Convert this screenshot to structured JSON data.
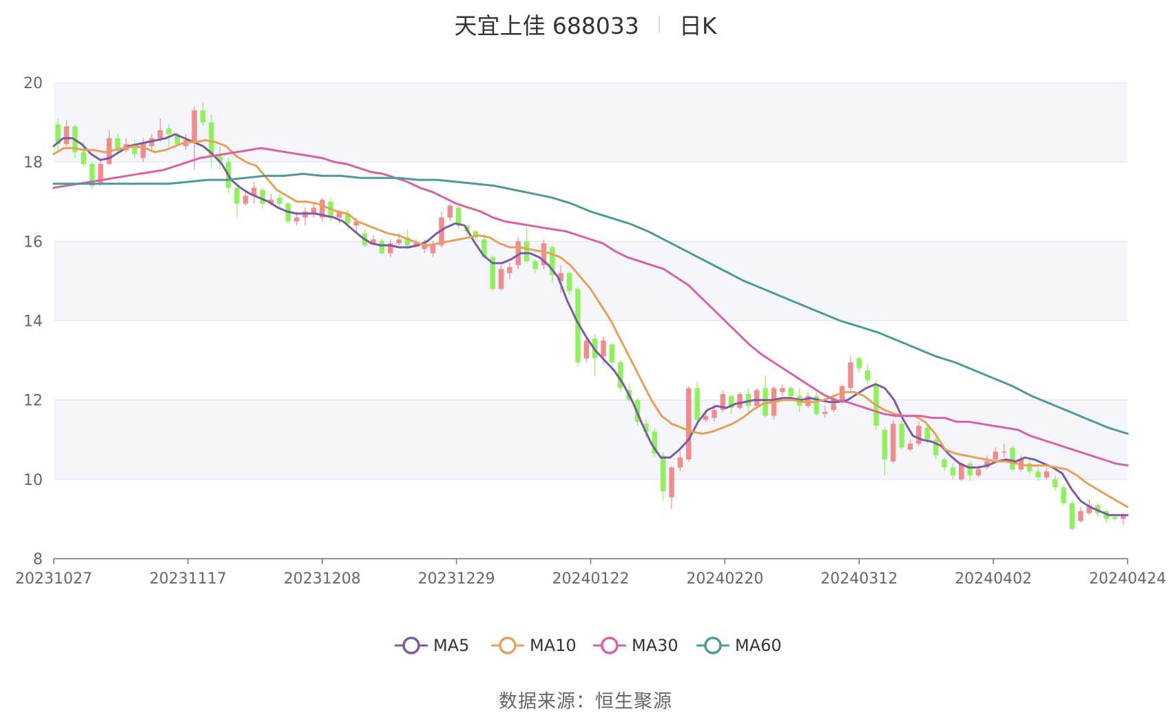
{
  "chart_data": {
    "type": "candlestick",
    "title": "天宜上佳 688033",
    "period_label": "日K",
    "y_ticks": [
      "20",
      "18",
      "16",
      "14",
      "12",
      "10",
      "8"
    ],
    "ylim": [
      8,
      20
    ],
    "x_ticks": [
      "20231027",
      "20231117",
      "20231208",
      "20231229",
      "20240122",
      "20240220",
      "20240312",
      "20240402",
      "20240424"
    ],
    "legend_position": "bottom-center",
    "grid": true,
    "colors": {
      "up": "#f28b8b",
      "down": "#8ef25a",
      "ma5": "#7b5aa6",
      "ma10": "#e8a055",
      "ma30": "#d860a8",
      "ma60": "#4a9a9a"
    },
    "candles": [
      [
        18.95,
        18.45,
        19.1,
        18.3
      ],
      [
        18.45,
        18.9,
        19.05,
        18.4
      ],
      [
        18.9,
        18.25,
        18.95,
        18.1
      ],
      [
        18.25,
        17.95,
        18.5,
        17.9
      ],
      [
        17.95,
        17.4,
        18.0,
        17.3
      ],
      [
        17.45,
        17.95,
        18.05,
        17.4
      ],
      [
        17.95,
        18.6,
        18.8,
        17.9
      ],
      [
        18.6,
        18.3,
        18.7,
        18.2
      ],
      [
        18.3,
        18.45,
        18.6,
        18.25
      ],
      [
        18.45,
        18.2,
        18.55,
        18.1
      ],
      [
        18.1,
        18.5,
        18.6,
        18.0
      ],
      [
        18.4,
        18.6,
        18.7,
        18.3
      ],
      [
        18.6,
        18.8,
        19.1,
        18.5
      ],
      [
        18.85,
        18.7,
        18.95,
        18.4
      ],
      [
        18.7,
        18.45,
        18.75,
        18.4
      ],
      [
        18.4,
        18.55,
        18.7,
        18.3
      ],
      [
        18.5,
        19.3,
        19.4,
        17.8
      ],
      [
        19.3,
        19.0,
        19.5,
        18.9
      ],
      [
        19.0,
        18.15,
        19.2,
        17.85
      ],
      [
        18.15,
        18.0,
        18.4,
        17.8
      ],
      [
        18.0,
        17.35,
        18.1,
        17.2
      ],
      [
        17.35,
        16.95,
        17.4,
        16.6
      ],
      [
        16.95,
        17.15,
        17.3,
        16.9
      ],
      [
        17.15,
        17.35,
        17.5,
        16.95
      ],
      [
        17.3,
        16.95,
        17.35,
        16.85
      ],
      [
        16.95,
        17.05,
        17.2,
        16.9
      ],
      [
        17.1,
        16.95,
        17.2,
        16.85
      ],
      [
        16.95,
        16.5,
        17.0,
        16.45
      ],
      [
        16.5,
        16.6,
        16.75,
        16.4
      ],
      [
        16.6,
        16.75,
        16.85,
        16.4
      ],
      [
        16.7,
        16.85,
        16.95,
        16.6
      ],
      [
        16.6,
        17.05,
        17.1,
        16.5
      ],
      [
        17.0,
        16.6,
        17.1,
        16.5
      ],
      [
        16.6,
        16.75,
        16.8,
        16.45
      ],
      [
        16.7,
        16.45,
        16.8,
        16.3
      ],
      [
        16.4,
        16.5,
        16.6,
        16.2
      ],
      [
        16.2,
        15.9,
        16.3,
        15.85
      ],
      [
        15.95,
        16.05,
        16.15,
        15.9
      ],
      [
        16.0,
        15.7,
        16.1,
        15.65
      ],
      [
        15.7,
        15.95,
        16.05,
        15.6
      ],
      [
        15.95,
        16.05,
        16.2,
        15.9
      ],
      [
        16.1,
        15.9,
        16.3,
        15.8
      ],
      [
        15.9,
        15.95,
        16.05,
        15.85
      ],
      [
        15.8,
        15.95,
        16.05,
        15.7
      ],
      [
        15.7,
        15.9,
        16.0,
        15.6
      ],
      [
        15.9,
        16.6,
        16.75,
        15.85
      ],
      [
        16.6,
        16.9,
        16.95,
        16.5
      ],
      [
        16.85,
        16.4,
        16.95,
        16.3
      ],
      [
        16.4,
        16.25,
        16.4,
        16.15
      ],
      [
        16.25,
        16.1,
        16.3,
        16.05
      ],
      [
        16.05,
        15.6,
        16.2,
        15.55
      ],
      [
        15.6,
        14.8,
        15.65,
        14.75
      ],
      [
        14.8,
        15.3,
        15.4,
        14.75
      ],
      [
        15.2,
        15.35,
        15.45,
        15.05
      ],
      [
        15.4,
        16.0,
        16.1,
        15.3
      ],
      [
        16.0,
        15.5,
        16.35,
        15.45
      ],
      [
        15.5,
        15.3,
        15.55,
        15.2
      ],
      [
        15.4,
        15.95,
        16.05,
        15.3
      ],
      [
        15.85,
        15.15,
        15.9,
        14.95
      ],
      [
        15.0,
        15.2,
        15.4,
        14.7
      ],
      [
        15.2,
        14.75,
        15.25,
        14.65
      ],
      [
        14.8,
        12.95,
        14.85,
        12.85
      ],
      [
        13.05,
        13.5,
        13.6,
        12.95
      ],
      [
        13.55,
        13.05,
        13.65,
        12.6
      ],
      [
        13.1,
        13.5,
        13.6,
        12.9
      ],
      [
        13.4,
        12.95,
        13.45,
        12.75
      ],
      [
        12.95,
        12.3,
        13.0,
        12.2
      ],
      [
        12.25,
        12.0,
        12.4,
        11.95
      ],
      [
        12.0,
        11.45,
        12.05,
        11.35
      ],
      [
        11.4,
        11.2,
        11.5,
        11.05
      ],
      [
        11.2,
        10.65,
        11.3,
        10.55
      ],
      [
        10.6,
        9.7,
        10.7,
        9.45
      ],
      [
        9.55,
        10.3,
        10.35,
        9.25
      ],
      [
        10.3,
        10.55,
        10.7,
        10.2
      ],
      [
        10.5,
        12.3,
        12.35,
        10.45
      ],
      [
        12.3,
        11.5,
        12.45,
        11.4
      ],
      [
        11.5,
        11.6,
        11.75,
        11.45
      ],
      [
        11.55,
        11.75,
        11.9,
        11.45
      ],
      [
        11.75,
        12.15,
        12.25,
        11.7
      ],
      [
        12.1,
        11.8,
        12.15,
        11.65
      ],
      [
        11.8,
        12.15,
        12.2,
        11.75
      ],
      [
        12.15,
        11.85,
        12.3,
        11.7
      ],
      [
        11.85,
        12.25,
        12.3,
        11.8
      ],
      [
        12.3,
        11.6,
        12.6,
        11.55
      ],
      [
        11.6,
        12.3,
        12.35,
        11.5
      ],
      [
        12.2,
        12.3,
        12.4,
        12.1
      ],
      [
        12.3,
        12.1,
        12.35,
        12.05
      ],
      [
        12.1,
        11.85,
        12.3,
        11.7
      ],
      [
        11.85,
        12.1,
        12.2,
        11.8
      ],
      [
        12.1,
        11.65,
        12.2,
        11.6
      ],
      [
        11.65,
        11.7,
        11.85,
        11.55
      ],
      [
        11.75,
        12.05,
        12.15,
        11.7
      ],
      [
        12.0,
        12.35,
        12.4,
        11.9
      ],
      [
        12.3,
        12.95,
        13.1,
        12.2
      ],
      [
        13.05,
        12.8,
        13.1,
        12.7
      ],
      [
        12.75,
        12.5,
        12.9,
        12.4
      ],
      [
        12.4,
        11.35,
        12.5,
        11.25
      ],
      [
        11.25,
        10.5,
        11.3,
        10.1
      ],
      [
        10.45,
        11.4,
        11.5,
        10.4
      ],
      [
        11.4,
        10.8,
        11.5,
        10.75
      ],
      [
        10.75,
        10.9,
        11.0,
        10.7
      ],
      [
        10.9,
        11.35,
        11.45,
        10.85
      ],
      [
        11.3,
        11.0,
        11.35,
        10.9
      ],
      [
        11.0,
        10.6,
        11.05,
        10.5
      ],
      [
        10.5,
        10.3,
        10.55,
        10.2
      ],
      [
        10.3,
        10.1,
        10.4,
        10.0
      ],
      [
        10.0,
        10.4,
        10.45,
        9.95
      ],
      [
        10.4,
        10.1,
        10.45,
        9.95
      ],
      [
        10.1,
        10.25,
        10.35,
        10.05
      ],
      [
        10.3,
        10.45,
        10.6,
        10.25
      ],
      [
        10.5,
        10.7,
        10.8,
        10.45
      ],
      [
        10.7,
        10.7,
        10.9,
        10.55
      ],
      [
        10.8,
        10.25,
        10.85,
        10.2
      ],
      [
        10.25,
        10.5,
        10.6,
        10.2
      ],
      [
        10.4,
        10.2,
        10.5,
        10.15
      ],
      [
        10.2,
        10.05,
        10.3,
        9.95
      ],
      [
        10.05,
        10.2,
        10.3,
        10.0
      ],
      [
        10.0,
        9.8,
        10.1,
        9.7
      ],
      [
        9.8,
        9.4,
        9.85,
        9.35
      ],
      [
        9.4,
        8.75,
        9.45,
        8.7
      ],
      [
        8.95,
        9.2,
        9.3,
        8.9
      ],
      [
        9.15,
        9.35,
        9.5,
        9.1
      ],
      [
        9.35,
        9.15,
        9.4,
        9.05
      ],
      [
        9.2,
        9.0,
        9.25,
        8.9
      ],
      [
        9.05,
        9.0,
        9.1,
        8.95
      ],
      [
        9.0,
        9.1,
        9.15,
        8.85
      ]
    ],
    "series": [
      {
        "name": "MA5",
        "values": [
          18.4,
          18.6,
          18.6,
          18.45,
          18.2,
          18.05,
          18.1,
          18.25,
          18.4,
          18.45,
          18.5,
          18.55,
          18.6,
          18.7,
          18.6,
          18.5,
          18.4,
          18.2,
          17.95,
          17.55,
          17.35,
          17.2,
          17.1,
          17.0,
          16.85,
          16.75,
          16.7,
          16.7,
          16.7,
          16.65,
          16.6,
          16.5,
          16.3,
          16.1,
          15.95,
          15.9,
          15.9,
          15.85,
          15.85,
          15.9,
          16.0,
          16.2,
          16.35,
          16.45,
          16.4,
          16.0,
          15.65,
          15.45,
          15.45,
          15.55,
          15.7,
          15.7,
          15.6,
          15.4,
          15.1,
          14.5,
          14.0,
          13.6,
          13.25,
          13.0,
          12.75,
          12.4,
          11.95,
          11.4,
          10.9,
          10.55,
          10.55,
          10.75,
          11.0,
          11.45,
          11.75,
          11.85,
          11.8,
          11.9,
          11.95,
          12.0,
          12.0,
          12.0,
          12.05,
          12.05,
          12.0,
          12.05,
          12.0,
          11.95,
          11.95,
          12.0,
          12.15,
          12.3,
          12.4,
          12.3,
          12.0,
          11.5,
          11.1,
          11.0,
          10.95,
          10.85,
          10.6,
          10.4,
          10.3,
          10.3,
          10.35,
          10.45,
          10.5,
          10.45,
          10.55,
          10.5,
          10.4,
          10.3,
          10.15,
          9.75,
          9.45,
          9.3,
          9.2,
          9.1,
          9.1,
          9.1
        ]
      },
      {
        "name": "MA10",
        "values": [
          18.2,
          18.35,
          18.35,
          18.3,
          18.3,
          18.25,
          18.3,
          18.35,
          18.4,
          18.35,
          18.25,
          18.3,
          18.4,
          18.5,
          18.5,
          18.55,
          18.5,
          18.4,
          18.15,
          18.0,
          17.9,
          17.6,
          17.3,
          17.15,
          17.0,
          17.0,
          16.95,
          16.85,
          16.75,
          16.7,
          16.5,
          16.4,
          16.3,
          16.2,
          16.15,
          16.05,
          15.95,
          15.9,
          15.95,
          16.0,
          16.05,
          16.1,
          16.15,
          16.1,
          15.95,
          15.85,
          15.85,
          15.8,
          15.75,
          15.7,
          15.6,
          15.4,
          15.1,
          14.8,
          14.4,
          14.0,
          13.5,
          13.0,
          12.5,
          12.0,
          11.6,
          11.4,
          11.3,
          11.2,
          11.15,
          11.2,
          11.3,
          11.4,
          11.55,
          11.75,
          11.9,
          11.95,
          12.0,
          12.0,
          11.95,
          11.95,
          12.0,
          12.1,
          12.2,
          12.2,
          12.1,
          11.9,
          11.75,
          11.65,
          11.6,
          11.6,
          11.45,
          11.15,
          10.75,
          10.65,
          10.6,
          10.55,
          10.5,
          10.45,
          10.45,
          10.4,
          10.35,
          10.35,
          10.35,
          10.3,
          10.25,
          10.1,
          9.9,
          9.75,
          9.6,
          9.45,
          9.3
        ]
      },
      {
        "name": "MA30",
        "values": [
          17.35,
          17.4,
          17.45,
          17.5,
          17.55,
          17.6,
          17.65,
          17.7,
          17.75,
          17.8,
          17.9,
          18.0,
          18.1,
          18.15,
          18.2,
          18.25,
          18.3,
          18.35,
          18.3,
          18.25,
          18.2,
          18.15,
          18.1,
          18.0,
          17.95,
          17.85,
          17.75,
          17.7,
          17.6,
          17.5,
          17.35,
          17.25,
          17.1,
          16.95,
          16.85,
          16.75,
          16.6,
          16.5,
          16.45,
          16.4,
          16.35,
          16.3,
          16.25,
          16.15,
          16.05,
          15.95,
          15.75,
          15.6,
          15.5,
          15.4,
          15.3,
          15.1,
          14.9,
          14.6,
          14.3,
          14.0,
          13.7,
          13.4,
          13.15,
          12.95,
          12.75,
          12.55,
          12.35,
          12.15,
          12.0,
          11.95,
          11.85,
          11.75,
          11.65,
          11.6,
          11.6,
          11.6,
          11.55,
          11.55,
          11.45,
          11.45,
          11.4,
          11.35,
          11.3,
          11.25,
          11.1,
          11.0,
          10.9,
          10.8,
          10.7,
          10.6,
          10.5,
          10.4,
          10.35
        ]
      },
      {
        "name": "MA60",
        "values": [
          17.45,
          17.45,
          17.45,
          17.45,
          17.45,
          17.45,
          17.45,
          17.5,
          17.55,
          17.55,
          17.6,
          17.65,
          17.65,
          17.7,
          17.65,
          17.65,
          17.6,
          17.6,
          17.6,
          17.55,
          17.55,
          17.5,
          17.45,
          17.4,
          17.3,
          17.2,
          17.1,
          16.95,
          16.75,
          16.6,
          16.45,
          16.25,
          16.0,
          15.75,
          15.5,
          15.25,
          15.0,
          14.8,
          14.6,
          14.4,
          14.2,
          14.0,
          13.85,
          13.7,
          13.5,
          13.3,
          13.1,
          12.95,
          12.75,
          12.55,
          12.35,
          12.1,
          11.9,
          11.7,
          11.5,
          11.3,
          11.15
        ]
      }
    ]
  },
  "source": {
    "label": "数据来源：",
    "value": "恒生聚源"
  }
}
